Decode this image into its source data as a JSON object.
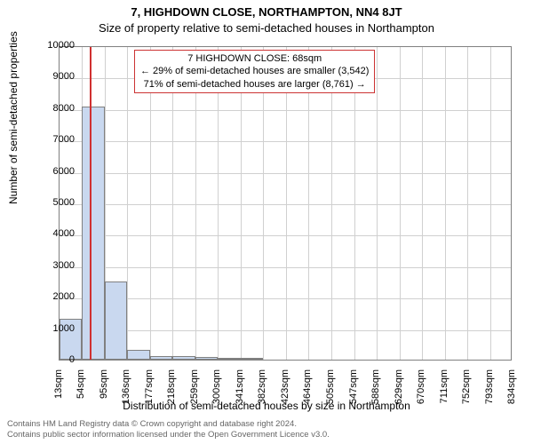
{
  "title_main": "7, HIGHDOWN CLOSE, NORTHAMPTON, NN4 8JT",
  "subtitle": "Size of property relative to semi-detached houses in Northampton",
  "ylabel": "Number of semi-detached properties",
  "xlabel": "Distribution of semi-detached houses by size in Northampton",
  "callout": {
    "line1": "7 HIGHDOWN CLOSE: 68sqm",
    "line2": "← 29% of semi-detached houses are smaller (3,542)",
    "line3": "71% of semi-detached houses are larger (8,761) →"
  },
  "footer": {
    "line1": "Contains HM Land Registry data © Crown copyright and database right 2024.",
    "line2": "Contains public sector information licensed under the Open Government Licence v3.0."
  },
  "chart": {
    "type": "histogram",
    "ylim": [
      0,
      10000
    ],
    "ytick_step": 1000,
    "xlim": [
      13,
      834
    ],
    "xticks": [
      13,
      54,
      95,
      136,
      177,
      218,
      259,
      300,
      341,
      382,
      423,
      464,
      505,
      547,
      588,
      629,
      670,
      711,
      752,
      793,
      834
    ],
    "xtick_unit": "sqm",
    "marker_x": 68,
    "bar_color": "#c9d8ef",
    "bar_border": "#808080",
    "grid_color": "#d0d0d0",
    "marker_color": "#d03030",
    "callout_border": "#cc3333",
    "background": "#ffffff",
    "axis_fontsize": 11,
    "label_fontsize": 12,
    "title_fontsize": 13,
    "bars": [
      {
        "x0": 13,
        "x1": 54,
        "y": 1300
      },
      {
        "x0": 54,
        "x1": 95,
        "y": 8050
      },
      {
        "x0": 95,
        "x1": 136,
        "y": 2500
      },
      {
        "x0": 136,
        "x1": 177,
        "y": 320
      },
      {
        "x0": 177,
        "x1": 218,
        "y": 110
      },
      {
        "x0": 218,
        "x1": 259,
        "y": 100
      },
      {
        "x0": 259,
        "x1": 300,
        "y": 75
      },
      {
        "x0": 300,
        "x1": 341,
        "y": 70
      },
      {
        "x0": 341,
        "x1": 382,
        "y": 25
      },
      {
        "x0": 382,
        "x1": 423,
        "y": 0
      },
      {
        "x0": 423,
        "x1": 464,
        "y": 0
      }
    ]
  }
}
